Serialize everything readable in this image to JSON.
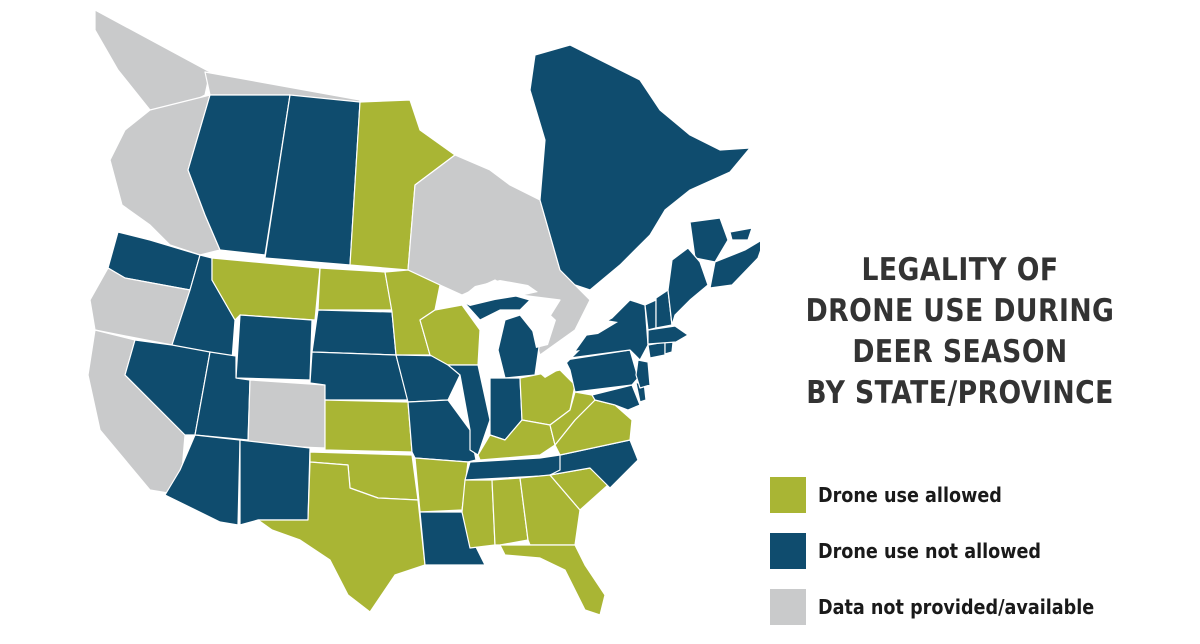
{
  "title": {
    "lines": [
      "LEGALITY OF",
      "DRONE USE DURING",
      "DEER SEASON",
      "BY STATE/PROVINCE"
    ]
  },
  "colors": {
    "allowed": "#a9b534",
    "not_allowed": "#0f4c6e",
    "no_data": "#c9cacb",
    "water": "#ffffff"
  },
  "legend": [
    {
      "key": "allowed",
      "label": "Drone use allowed"
    },
    {
      "key": "not_allowed",
      "label": "Drone use not allowed"
    },
    {
      "key": "no_data",
      "label": "Data not provided/available"
    }
  ],
  "regions": [
    {
      "name": "Yukon",
      "status": "no_data"
    },
    {
      "name": "Northwest Territories",
      "status": "no_data"
    },
    {
      "name": "British Columbia",
      "status": "no_data"
    },
    {
      "name": "Alberta",
      "status": "not_allowed"
    },
    {
      "name": "Saskatchewan",
      "status": "not_allowed"
    },
    {
      "name": "Manitoba",
      "status": "allowed"
    },
    {
      "name": "Ontario",
      "status": "no_data"
    },
    {
      "name": "Quebec",
      "status": "not_allowed"
    },
    {
      "name": "New Brunswick",
      "status": "not_allowed"
    },
    {
      "name": "Nova Scotia",
      "status": "not_allowed"
    },
    {
      "name": "Prince Edward Island",
      "status": "not_allowed"
    },
    {
      "name": "Washington",
      "status": "not_allowed"
    },
    {
      "name": "Oregon",
      "status": "no_data"
    },
    {
      "name": "California",
      "status": "no_data"
    },
    {
      "name": "Idaho",
      "status": "not_allowed"
    },
    {
      "name": "Nevada",
      "status": "not_allowed"
    },
    {
      "name": "Montana",
      "status": "allowed"
    },
    {
      "name": "Wyoming",
      "status": "not_allowed"
    },
    {
      "name": "Utah",
      "status": "not_allowed"
    },
    {
      "name": "Colorado",
      "status": "no_data"
    },
    {
      "name": "Arizona",
      "status": "not_allowed"
    },
    {
      "name": "New Mexico",
      "status": "not_allowed"
    },
    {
      "name": "North Dakota",
      "status": "allowed"
    },
    {
      "name": "South Dakota",
      "status": "not_allowed"
    },
    {
      "name": "Nebraska",
      "status": "not_allowed"
    },
    {
      "name": "Kansas",
      "status": "allowed"
    },
    {
      "name": "Oklahoma",
      "status": "allowed"
    },
    {
      "name": "Texas",
      "status": "allowed"
    },
    {
      "name": "Minnesota",
      "status": "allowed"
    },
    {
      "name": "Iowa",
      "status": "not_allowed"
    },
    {
      "name": "Missouri",
      "status": "not_allowed"
    },
    {
      "name": "Arkansas",
      "status": "allowed"
    },
    {
      "name": "Louisiana",
      "status": "not_allowed"
    },
    {
      "name": "Wisconsin",
      "status": "allowed"
    },
    {
      "name": "Illinois",
      "status": "not_allowed"
    },
    {
      "name": "Michigan",
      "status": "not_allowed"
    },
    {
      "name": "Indiana",
      "status": "not_allowed"
    },
    {
      "name": "Ohio",
      "status": "allowed"
    },
    {
      "name": "Kentucky",
      "status": "allowed"
    },
    {
      "name": "Tennessee",
      "status": "not_allowed"
    },
    {
      "name": "Mississippi",
      "status": "allowed"
    },
    {
      "name": "Alabama",
      "status": "allowed"
    },
    {
      "name": "Georgia",
      "status": "allowed"
    },
    {
      "name": "Florida",
      "status": "allowed"
    },
    {
      "name": "South Carolina",
      "status": "allowed"
    },
    {
      "name": "North Carolina",
      "status": "not_allowed"
    },
    {
      "name": "Virginia",
      "status": "allowed"
    },
    {
      "name": "West Virginia",
      "status": "allowed"
    },
    {
      "name": "Pennsylvania",
      "status": "not_allowed"
    },
    {
      "name": "New York",
      "status": "not_allowed"
    },
    {
      "name": "Maryland",
      "status": "not_allowed"
    },
    {
      "name": "Delaware",
      "status": "not_allowed"
    },
    {
      "name": "New Jersey",
      "status": "not_allowed"
    },
    {
      "name": "Connecticut",
      "status": "not_allowed"
    },
    {
      "name": "Rhode Island",
      "status": "not_allowed"
    },
    {
      "name": "Massachusetts",
      "status": "not_allowed"
    },
    {
      "name": "Vermont",
      "status": "not_allowed"
    },
    {
      "name": "New Hampshire",
      "status": "not_allowed"
    },
    {
      "name": "Maine",
      "status": "not_allowed"
    }
  ]
}
